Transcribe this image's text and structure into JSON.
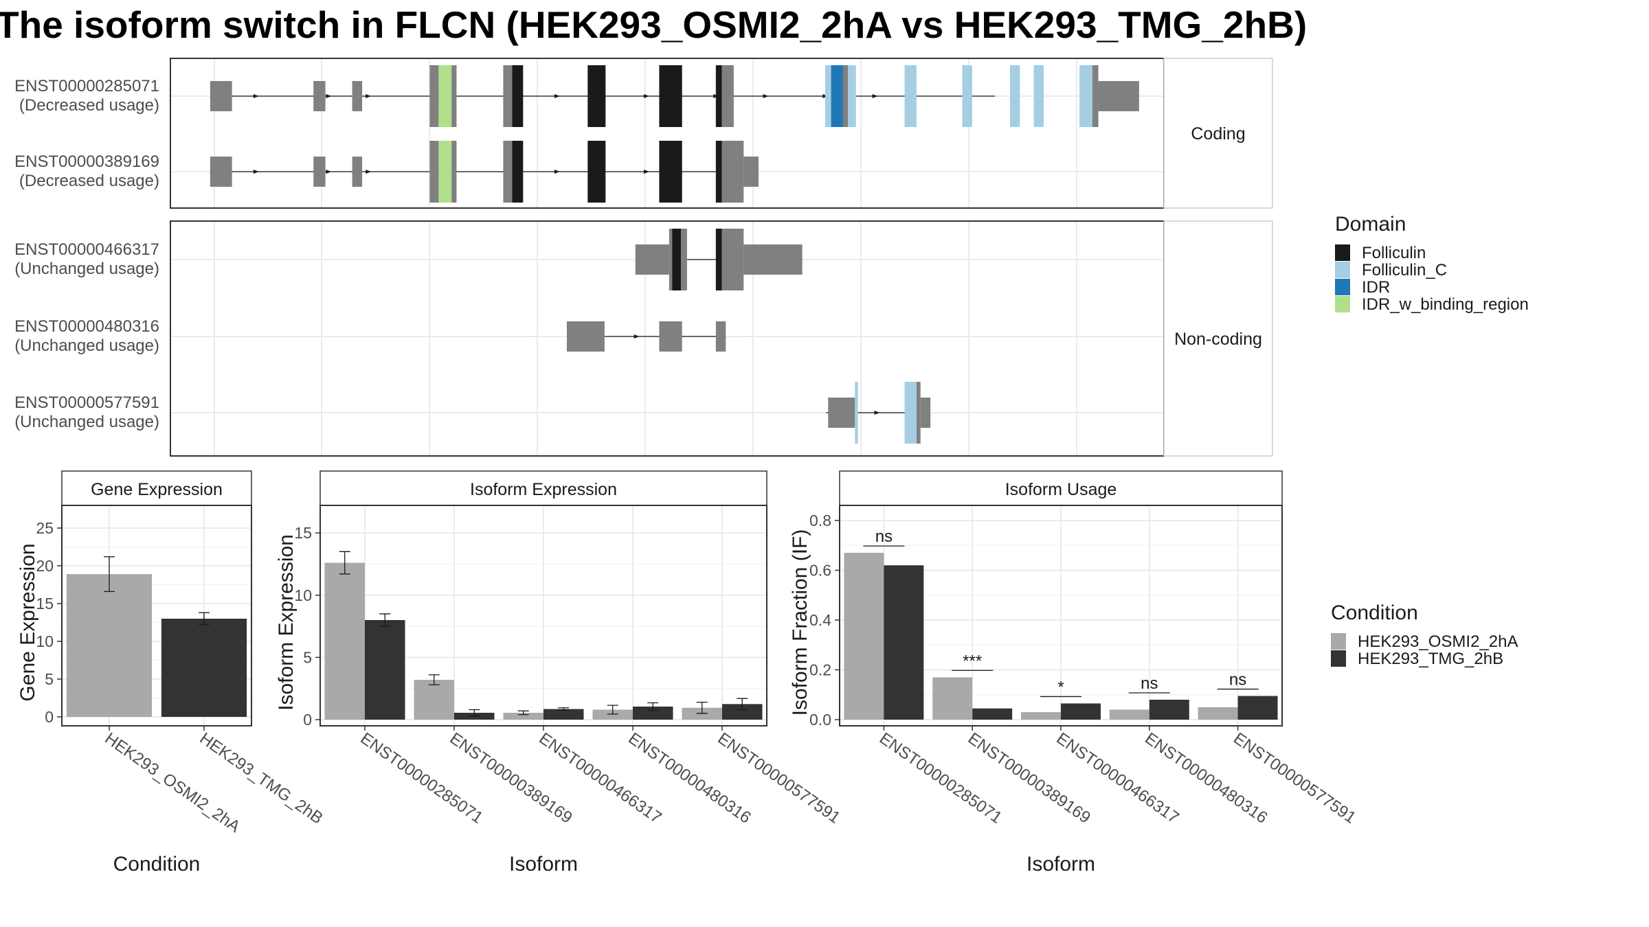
{
  "title": "The isoform switch in FLCN (HEK293_OSMI2_2hA vs HEK293_TMG_2hB)",
  "colors": {
    "Folliculin": "#1a1a1a",
    "Folliculin_C": "#a6cee3",
    "IDR": "#1f78b4",
    "IDR_w_binding_region": "#b2df8a",
    "exon": "#808080",
    "condA": "#a9a9a9",
    "condB": "#333333",
    "grid": "#ebebeb"
  },
  "structure": {
    "panels": [
      {
        "label": "Coding",
        "transcripts": [
          {
            "id": "ENST00000285071",
            "usage": "(Decreased usage)",
            "intron": [
              0.04,
              0.83
            ],
            "arrows": [
              0.087,
              0.16,
              0.2,
              0.39,
              0.48,
              0.55,
              0.6,
              0.66,
              0.71
            ],
            "exons": [
              {
                "x0": 0.04,
                "x1": 0.062,
                "t": "u"
              },
              {
                "x0": 0.144,
                "x1": 0.156,
                "t": "u"
              },
              {
                "x0": 0.183,
                "x1": 0.193,
                "t": "u"
              },
              {
                "x0": 0.261,
                "x1": 0.27,
                "t": "c"
              },
              {
                "x0": 0.27,
                "x1": 0.283,
                "t": "c",
                "d": "IDR_w_binding_region"
              },
              {
                "x0": 0.283,
                "x1": 0.288,
                "t": "c"
              },
              {
                "x0": 0.335,
                "x1": 0.344,
                "t": "c"
              },
              {
                "x0": 0.344,
                "x1": 0.355,
                "t": "c",
                "d": "Folliculin"
              },
              {
                "x0": 0.42,
                "x1": 0.438,
                "t": "c",
                "d": "Folliculin"
              },
              {
                "x0": 0.492,
                "x1": 0.515,
                "t": "c",
                "d": "Folliculin"
              },
              {
                "x0": 0.549,
                "x1": 0.555,
                "t": "c",
                "d": "Folliculin"
              },
              {
                "x0": 0.555,
                "x1": 0.567,
                "t": "c"
              },
              {
                "x0": 0.659,
                "x1": 0.665,
                "t": "c",
                "d": "Folliculin_C"
              },
              {
                "x0": 0.665,
                "x1": 0.677,
                "t": "c",
                "d": "IDR"
              },
              {
                "x0": 0.677,
                "x1": 0.682,
                "t": "c"
              },
              {
                "x0": 0.682,
                "x1": 0.69,
                "t": "c",
                "d": "Folliculin_C"
              },
              {
                "x0": 0.739,
                "x1": 0.751,
                "t": "c",
                "d": "Folliculin_C"
              },
              {
                "x0": 0.797,
                "x1": 0.807,
                "t": "c",
                "d": "Folliculin_C"
              },
              {
                "x0": 0.845,
                "x1": 0.855,
                "t": "c",
                "d": "Folliculin_C"
              },
              {
                "x0": 0.869,
                "x1": 0.879,
                "t": "c",
                "d": "Folliculin_C"
              },
              {
                "x0": 0.915,
                "x1": 0.928,
                "t": "c",
                "d": "Folliculin_C"
              },
              {
                "x0": 0.928,
                "x1": 0.934,
                "t": "c"
              },
              {
                "x0": 0.934,
                "x1": 0.975,
                "t": "u"
              }
            ]
          },
          {
            "id": "ENST00000389169",
            "usage": "(Decreased usage)",
            "intron": [
              0.04,
              0.55
            ],
            "arrows": [
              0.087,
              0.16,
              0.2,
              0.39,
              0.48
            ],
            "exons": [
              {
                "x0": 0.04,
                "x1": 0.062,
                "t": "u"
              },
              {
                "x0": 0.144,
                "x1": 0.156,
                "t": "u"
              },
              {
                "x0": 0.183,
                "x1": 0.193,
                "t": "u"
              },
              {
                "x0": 0.261,
                "x1": 0.27,
                "t": "c"
              },
              {
                "x0": 0.27,
                "x1": 0.283,
                "t": "c",
                "d": "IDR_w_binding_region"
              },
              {
                "x0": 0.283,
                "x1": 0.288,
                "t": "c"
              },
              {
                "x0": 0.335,
                "x1": 0.344,
                "t": "c"
              },
              {
                "x0": 0.344,
                "x1": 0.355,
                "t": "c",
                "d": "Folliculin"
              },
              {
                "x0": 0.42,
                "x1": 0.438,
                "t": "c",
                "d": "Folliculin"
              },
              {
                "x0": 0.492,
                "x1": 0.515,
                "t": "c",
                "d": "Folliculin"
              },
              {
                "x0": 0.549,
                "x1": 0.555,
                "t": "c",
                "d": "Folliculin"
              },
              {
                "x0": 0.555,
                "x1": 0.577,
                "t": "c"
              },
              {
                "x0": 0.577,
                "x1": 0.592,
                "t": "u"
              }
            ]
          }
        ]
      },
      {
        "label": "Non-coding",
        "transcripts": [
          {
            "id": "ENST00000466317",
            "usage": "(Unchanged usage)",
            "intron": [
              0.52,
              0.55
            ],
            "arrows": [],
            "exons": [
              {
                "x0": 0.468,
                "x1": 0.502,
                "t": "u"
              },
              {
                "x0": 0.502,
                "x1": 0.505,
                "t": "c"
              },
              {
                "x0": 0.505,
                "x1": 0.514,
                "t": "c",
                "d": "Folliculin"
              },
              {
                "x0": 0.514,
                "x1": 0.52,
                "t": "c"
              },
              {
                "x0": 0.549,
                "x1": 0.555,
                "t": "c",
                "d": "Folliculin"
              },
              {
                "x0": 0.555,
                "x1": 0.577,
                "t": "c"
              },
              {
                "x0": 0.577,
                "x1": 0.636,
                "t": "u"
              }
            ]
          },
          {
            "id": "ENST00000480316",
            "usage": "(Unchanged usage)",
            "intron": [
              0.4,
              0.557
            ],
            "arrows": [
              0.47
            ],
            "exons": [
              {
                "x0": 0.399,
                "x1": 0.437,
                "t": "u"
              },
              {
                "x0": 0.492,
                "x1": 0.515,
                "t": "u"
              },
              {
                "x0": 0.549,
                "x1": 0.559,
                "t": "u"
              }
            ]
          },
          {
            "id": "ENST00000577591",
            "usage": "(Unchanged usage)",
            "intron": [
              0.66,
              0.74
            ],
            "arrows": [
              0.712
            ],
            "exons": [
              {
                "x0": 0.662,
                "x1": 0.689,
                "t": "u"
              },
              {
                "x0": 0.689,
                "x1": 0.692,
                "t": "c",
                "d": "Folliculin_C"
              },
              {
                "x0": 0.739,
                "x1": 0.751,
                "t": "c",
                "d": "Folliculin_C"
              },
              {
                "x0": 0.751,
                "x1": 0.755,
                "t": "c"
              },
              {
                "x0": 0.755,
                "x1": 0.765,
                "t": "u"
              }
            ]
          }
        ]
      }
    ]
  },
  "domain_legend": {
    "title": "Domain",
    "items": [
      "Folliculin",
      "Folliculin_C",
      "IDR",
      "IDR_w_binding_region"
    ]
  },
  "condition_legend": {
    "title": "Condition",
    "items": [
      "HEK293_OSMI2_2hA",
      "HEK293_TMG_2hB"
    ]
  },
  "chart_data": [
    {
      "type": "bar",
      "title": "Gene Expression",
      "xlabel": "Condition",
      "ylabel": "Gene Expression",
      "categories": [
        "HEK293_OSMI2_2hA",
        "HEK293_TMG_2hB"
      ],
      "values": [
        18.9,
        13.0
      ],
      "errors": [
        2.3,
        0.8
      ],
      "ylim": [
        0,
        26
      ],
      "yticks": [
        0,
        5,
        10,
        15,
        20,
        25
      ]
    },
    {
      "type": "bar",
      "title": "Isoform Expression",
      "xlabel": "Isoform",
      "ylabel": "Isoform Expression",
      "categories": [
        "ENST00000285071",
        "ENST00000389169",
        "ENST00000466317",
        "ENST00000480316",
        "ENST00000577591"
      ],
      "series": [
        {
          "name": "HEK293_OSMI2_2hA",
          "values": [
            12.6,
            3.2,
            0.55,
            0.8,
            0.95
          ],
          "errors": [
            0.9,
            0.4,
            0.15,
            0.35,
            0.45
          ]
        },
        {
          "name": "HEK293_TMG_2hB",
          "values": [
            8.0,
            0.55,
            0.85,
            1.05,
            1.25
          ],
          "errors": [
            0.5,
            0.25,
            0.1,
            0.3,
            0.45
          ]
        }
      ],
      "ylim": [
        0,
        16
      ],
      "yticks": [
        0,
        5,
        10,
        15
      ]
    },
    {
      "type": "bar",
      "title": "Isoform Usage",
      "xlabel": "Isoform",
      "ylabel": "Isoform Fraction (IF)",
      "categories": [
        "ENST00000285071",
        "ENST00000389169",
        "ENST00000466317",
        "ENST00000480316",
        "ENST00000577591"
      ],
      "series": [
        {
          "name": "HEK293_OSMI2_2hA",
          "values": [
            0.67,
            0.17,
            0.03,
            0.04,
            0.05
          ]
        },
        {
          "name": "HEK293_TMG_2hB",
          "values": [
            0.62,
            0.045,
            0.065,
            0.08,
            0.095
          ]
        }
      ],
      "significance": [
        "ns",
        "***",
        "*",
        "ns",
        "ns"
      ],
      "ylim": [
        0,
        0.8
      ],
      "yticks": [
        "0.0",
        "0.2",
        "0.4",
        "0.6",
        "0.8"
      ]
    }
  ]
}
